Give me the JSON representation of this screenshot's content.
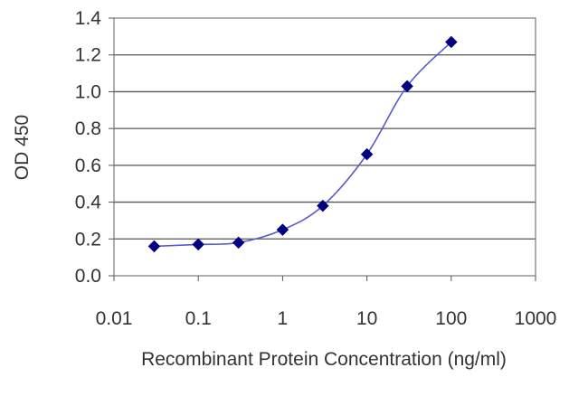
{
  "chart_data": {
    "type": "line",
    "title": "",
    "xlabel": "Recombinant Protein Concentration (ng/ml)",
    "ylabel": "OD 450",
    "x_scale": "log",
    "xlim": [
      0.01,
      1000
    ],
    "ylim": [
      0.0,
      1.4
    ],
    "x_ticks": [
      0.01,
      0.1,
      1,
      10,
      100,
      1000
    ],
    "x_tick_labels": [
      "0.01",
      "0.1",
      "1",
      "10",
      "100",
      "1000"
    ],
    "y_ticks": [
      0.0,
      0.2,
      0.4,
      0.6,
      0.8,
      1.0,
      1.2,
      1.4
    ],
    "y_tick_labels": [
      "0.0",
      "0.2",
      "0.4",
      "0.6",
      "0.8",
      "1.0",
      "1.2",
      "1.4"
    ],
    "grid": "horizontal",
    "series": [
      {
        "x": [
          0.03,
          0.1,
          0.3,
          1,
          3,
          10,
          30,
          100
        ],
        "y": [
          0.16,
          0.17,
          0.18,
          0.25,
          0.38,
          0.66,
          1.03,
          1.27
        ],
        "marker": "diamond",
        "color": "#000080",
        "line_color": "#5b5bd0"
      }
    ]
  }
}
